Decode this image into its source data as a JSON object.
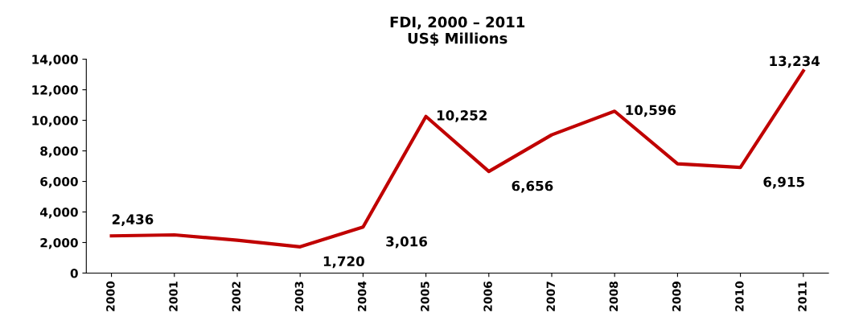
{
  "chart_data": {
    "type": "line",
    "title": "FDI, 2000 – 2011\nUS$ Millions",
    "categories": [
      "2000",
      "2001",
      "2002",
      "2003",
      "2004",
      "2005",
      "2006",
      "2007",
      "2008",
      "2009",
      "2010",
      "2011"
    ],
    "series": [
      {
        "color": "#c00000",
        "values": [
          2436,
          2500,
          2150,
          1720,
          3016,
          10252,
          6656,
          9050,
          10596,
          7150,
          6915,
          13234
        ],
        "value_labels": [
          "2,436",
          null,
          null,
          "1,720",
          "3,016",
          "10,252",
          "6,656",
          null,
          "10,596",
          null,
          "6,915",
          "13,234"
        ]
      }
    ],
    "ylim": [
      0,
      14000
    ],
    "yticks": [
      {
        "value": 0,
        "label": "0"
      },
      {
        "value": 2000,
        "label": "2,000"
      },
      {
        "value": 4000,
        "label": "4,000"
      },
      {
        "value": 6000,
        "label": "6,000"
      },
      {
        "value": 8000,
        "label": "8,000"
      },
      {
        "value": 10000,
        "label": "10,000"
      },
      {
        "value": 12000,
        "label": "12,000"
      },
      {
        "value": 14000,
        "label": "14,000"
      }
    ],
    "grid": false,
    "legend": false,
    "marker": "none",
    "line_style": "solid"
  }
}
